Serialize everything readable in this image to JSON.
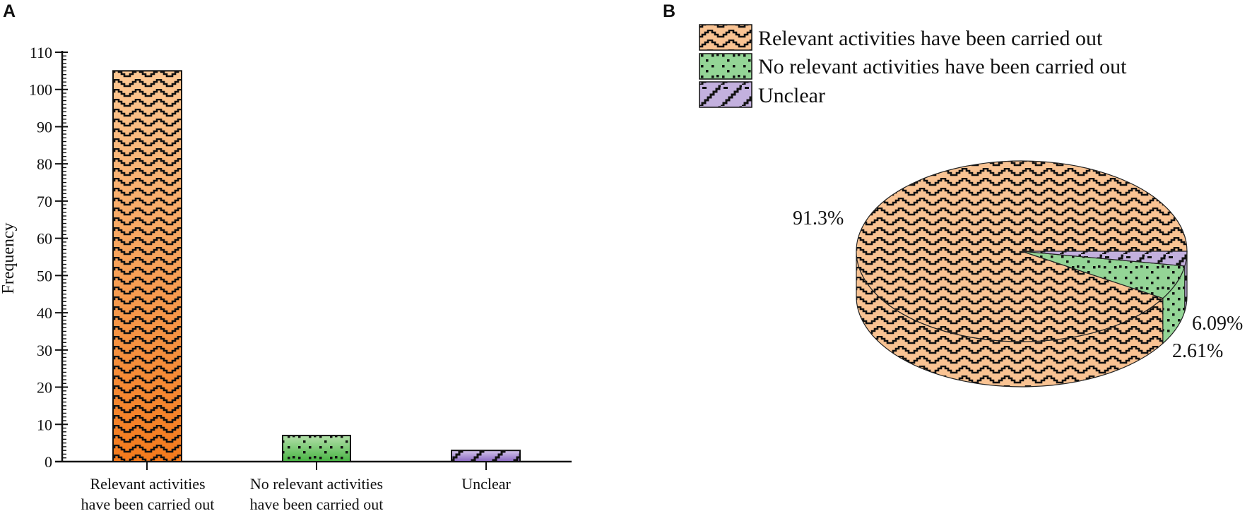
{
  "panels": {
    "a": {
      "letter": "A"
    },
    "b": {
      "letter": "B"
    }
  },
  "colors": {
    "orange_light": "#fcc894",
    "orange_dark": "#f47a1c",
    "green_light": "#b3e0aa",
    "green_dark": "#48b443",
    "purple_light": "#d3c4ea",
    "purple_dark": "#8a68c2",
    "pie_orange": "#f9c393",
    "pie_green": "#94d596",
    "pie_purple": "#c3b0de"
  },
  "chart_data": [
    {
      "type": "bar",
      "panel": "A",
      "title": "",
      "xlabel": "",
      "ylabel": "Frequency",
      "ylim": [
        0,
        110
      ],
      "yticks": [
        0,
        10,
        20,
        30,
        40,
        50,
        60,
        70,
        80,
        90,
        100,
        110
      ],
      "categories": [
        "Relevant activities have been carried out",
        "No relevant activities have been carried out",
        "Unclear"
      ],
      "category_lines": [
        [
          "Relevant activities",
          "have been carried out"
        ],
        [
          "No relevant activities",
          "have been carried out"
        ],
        [
          "Unclear"
        ]
      ],
      "values": [
        105,
        7,
        3
      ],
      "grid": false,
      "patterns": [
        "wave",
        "dots",
        "diagonal-steps"
      ]
    },
    {
      "type": "pie",
      "panel": "B",
      "style": "3d",
      "labels": [
        "Relevant activities have been carried out",
        "No relevant activities have been carried out",
        "Unclear"
      ],
      "values": [
        91.3,
        6.09,
        2.61
      ],
      "value_labels": [
        "91.3%",
        "6.09%",
        "2.61%"
      ],
      "legend_position": "top"
    }
  ]
}
